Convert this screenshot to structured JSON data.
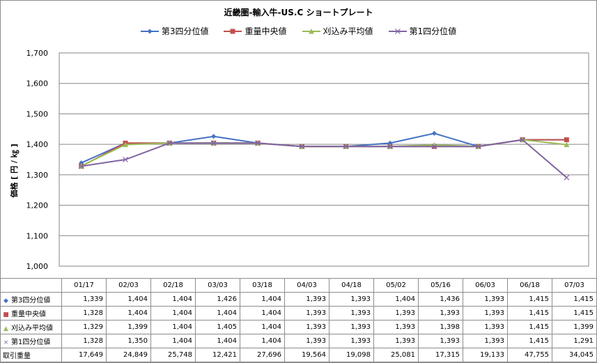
{
  "chart_data": {
    "type": "line",
    "title": "近畿圏-輸入牛-US.C ショートプレート",
    "ylabel": "価格 [ 円 / ㎏ ]",
    "ylim": [
      1000,
      1700
    ],
    "yticks": [
      "1,000",
      "1,100",
      "1,200",
      "1,300",
      "1,400",
      "1,500",
      "1,600",
      "1,700"
    ],
    "grid": true,
    "legend_position": "top",
    "categories": [
      "01/17",
      "02/03",
      "02/18",
      "03/03",
      "03/18",
      "04/03",
      "04/18",
      "05/02",
      "05/16",
      "06/03",
      "06/18",
      "07/03"
    ],
    "series": [
      {
        "name": "第3四分位値",
        "color": "#4472c4",
        "marker": "diamond",
        "values": [
          1339,
          1404,
          1404,
          1426,
          1404,
          1393,
          1393,
          1404,
          1436,
          1393,
          1415,
          1415
        ],
        "labels": [
          "1,339",
          "1,404",
          "1,404",
          "1,426",
          "1,404",
          "1,393",
          "1,393",
          "1,404",
          "1,436",
          "1,393",
          "1,415",
          "1,415"
        ]
      },
      {
        "name": "重量中央値",
        "color": "#c0504d",
        "marker": "square",
        "values": [
          1328,
          1404,
          1404,
          1404,
          1404,
          1393,
          1393,
          1393,
          1393,
          1393,
          1415,
          1415
        ],
        "labels": [
          "1,328",
          "1,404",
          "1,404",
          "1,404",
          "1,404",
          "1,393",
          "1,393",
          "1,393",
          "1,393",
          "1,393",
          "1,415",
          "1,415"
        ]
      },
      {
        "name": "刈込み平均値",
        "color": "#9bbb59",
        "marker": "triangle",
        "values": [
          1329,
          1399,
          1404,
          1405,
          1404,
          1393,
          1393,
          1393,
          1398,
          1393,
          1415,
          1399
        ],
        "labels": [
          "1,329",
          "1,399",
          "1,404",
          "1,405",
          "1,404",
          "1,393",
          "1,393",
          "1,393",
          "1,398",
          "1,393",
          "1,415",
          "1,399"
        ]
      },
      {
        "name": "第1四分位値",
        "color": "#8064a2",
        "marker": "x",
        "values": [
          1328,
          1350,
          1404,
          1404,
          1404,
          1393,
          1393,
          1393,
          1393,
          1393,
          1415,
          1291
        ],
        "labels": [
          "1,328",
          "1,350",
          "1,404",
          "1,404",
          "1,404",
          "1,393",
          "1,393",
          "1,393",
          "1,393",
          "1,393",
          "1,415",
          "1,291"
        ]
      }
    ],
    "table_extra_row": {
      "name": "取引重量",
      "values": [
        "17,649",
        "24,849",
        "25,748",
        "12,421",
        "27,696",
        "19,564",
        "19,098",
        "25,081",
        "17,315",
        "19,133",
        "47,755",
        "34,045"
      ]
    }
  }
}
